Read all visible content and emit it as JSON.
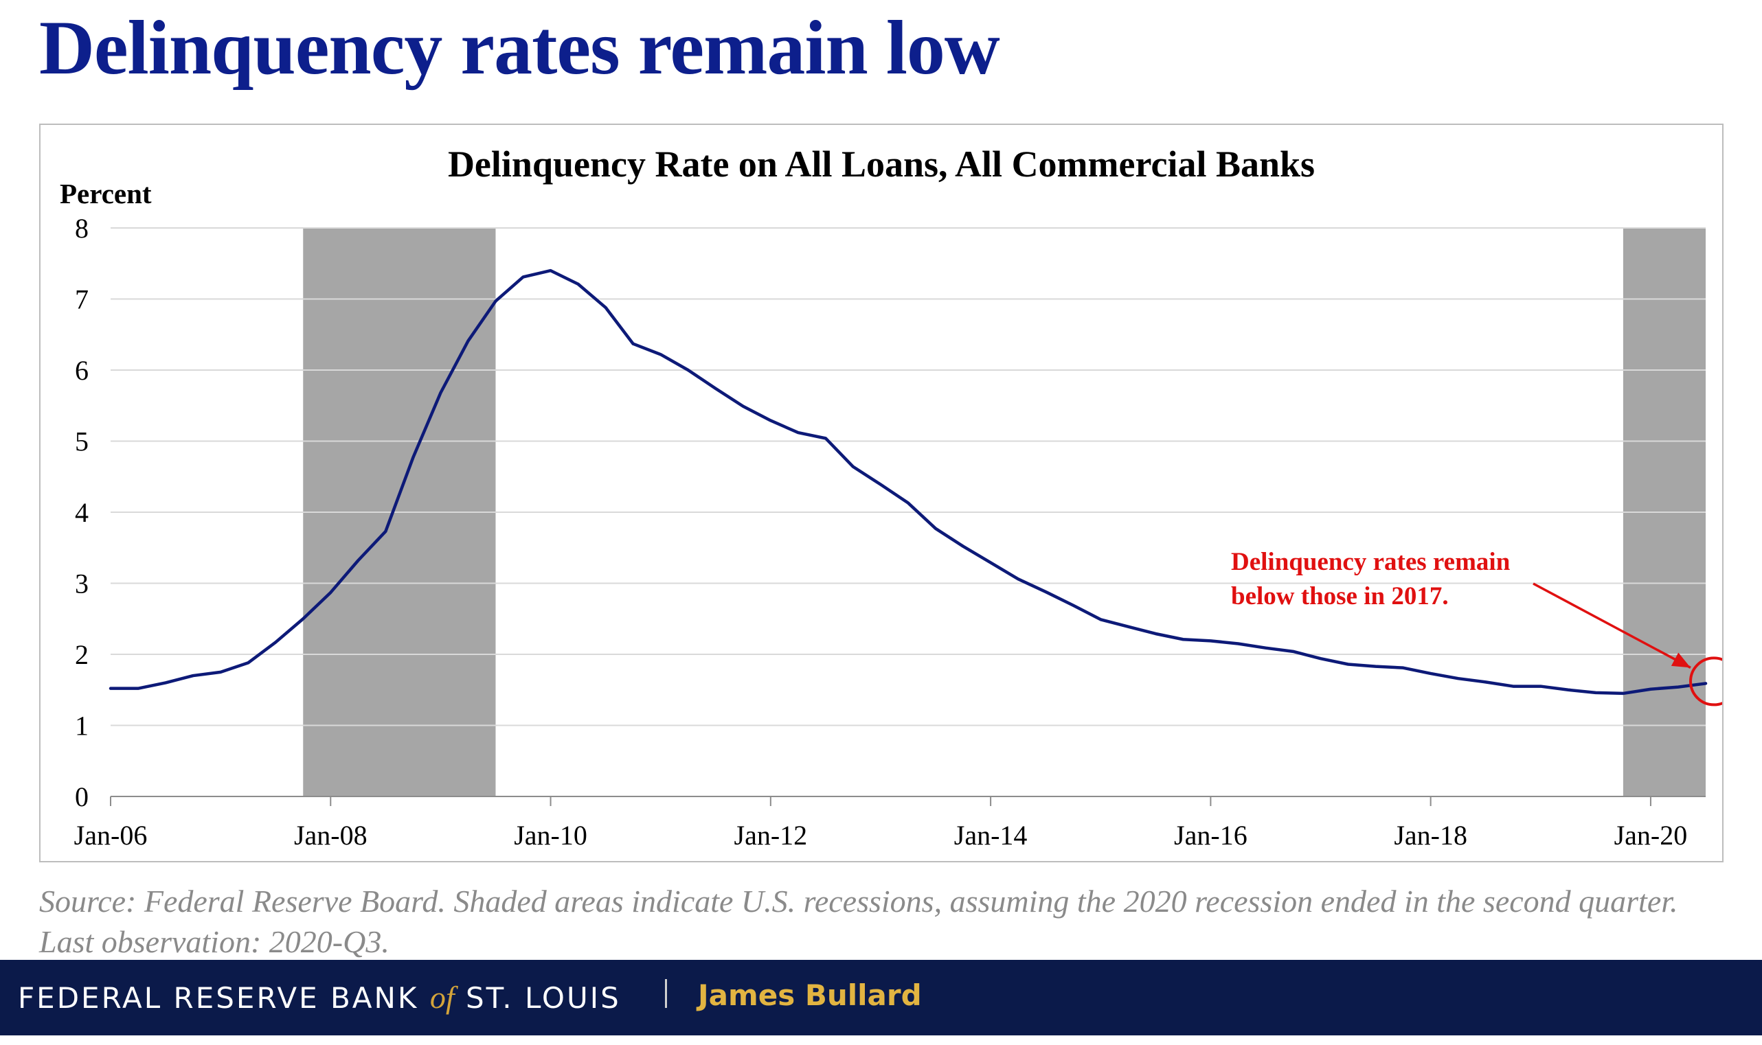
{
  "slide": {
    "title": "Delinquency rates remain low",
    "source_note": "Source: Federal Reserve Board. Shaded areas indicate U.S. recessions, assuming the 2020 recession ended in the second quarter. Last observation: 2020-Q3."
  },
  "footer": {
    "org_part1": "FEDERAL RESERVE BANK",
    "org_of": "of",
    "org_part2": "ST. LOUIS",
    "presenter": "James Bullard"
  },
  "colors": {
    "title": "#0d1f8c",
    "series_line": "#0d1a78",
    "recession_shade": "#a6a6a6",
    "annotation": "#e01010",
    "footer_bg": "#0b1a4a",
    "footer_accent": "#e2b441"
  },
  "chart_data": {
    "type": "line",
    "title": "Delinquency Rate on All Loans, All Commercial Banks",
    "ylabel": "Percent",
    "xlabel": "",
    "ylim": [
      0,
      8
    ],
    "yticks": [
      "0",
      "1",
      "2",
      "3",
      "4",
      "5",
      "6",
      "7",
      "8"
    ],
    "xlim": [
      "2006-Q1",
      "2020-Q3"
    ],
    "xticks": [
      "Jan-06",
      "Jan-08",
      "Jan-10",
      "Jan-12",
      "Jan-14",
      "Jan-16",
      "Jan-18",
      "Jan-20"
    ],
    "grid": true,
    "legend": "none",
    "x": [
      "2006-Q1",
      "2006-Q2",
      "2006-Q3",
      "2006-Q4",
      "2007-Q1",
      "2007-Q2",
      "2007-Q3",
      "2007-Q4",
      "2008-Q1",
      "2008-Q2",
      "2008-Q3",
      "2008-Q4",
      "2009-Q1",
      "2009-Q2",
      "2009-Q3",
      "2009-Q4",
      "2010-Q1",
      "2010-Q2",
      "2010-Q3",
      "2010-Q4",
      "2011-Q1",
      "2011-Q2",
      "2011-Q3",
      "2011-Q4",
      "2012-Q1",
      "2012-Q2",
      "2012-Q3",
      "2012-Q4",
      "2013-Q1",
      "2013-Q2",
      "2013-Q3",
      "2013-Q4",
      "2014-Q1",
      "2014-Q2",
      "2014-Q3",
      "2014-Q4",
      "2015-Q1",
      "2015-Q2",
      "2015-Q3",
      "2015-Q4",
      "2016-Q1",
      "2016-Q2",
      "2016-Q3",
      "2016-Q4",
      "2017-Q1",
      "2017-Q2",
      "2017-Q3",
      "2017-Q4",
      "2018-Q1",
      "2018-Q2",
      "2018-Q3",
      "2018-Q4",
      "2019-Q1",
      "2019-Q2",
      "2019-Q3",
      "2019-Q4",
      "2020-Q1",
      "2020-Q2",
      "2020-Q3"
    ],
    "series": [
      {
        "values": [
          1.52,
          1.52,
          1.6,
          1.7,
          1.75,
          1.88,
          2.17,
          2.5,
          2.87,
          3.32,
          3.73,
          4.77,
          5.68,
          6.41,
          6.97,
          7.31,
          7.4,
          7.21,
          6.88,
          6.37,
          6.22,
          6.0,
          5.74,
          5.49,
          5.29,
          5.12,
          5.04,
          4.64,
          4.39,
          4.13,
          3.77,
          3.52,
          3.29,
          3.06,
          2.88,
          2.69,
          2.49,
          2.39,
          2.29,
          2.21,
          2.19,
          2.15,
          2.09,
          2.04,
          1.94,
          1.86,
          1.83,
          1.81,
          1.73,
          1.66,
          1.61,
          1.55,
          1.55,
          1.5,
          1.46,
          1.45,
          1.51,
          1.54,
          1.59
        ]
      }
    ],
    "recessions": [
      {
        "start": "2007-Q4",
        "end": "2009-Q2"
      },
      {
        "start": "2019-Q4",
        "end": "2020-Q2"
      }
    ],
    "annotation": {
      "lines": [
        "Delinquency rates remain",
        "below those in 2017."
      ],
      "target": "2020-Q3"
    }
  }
}
